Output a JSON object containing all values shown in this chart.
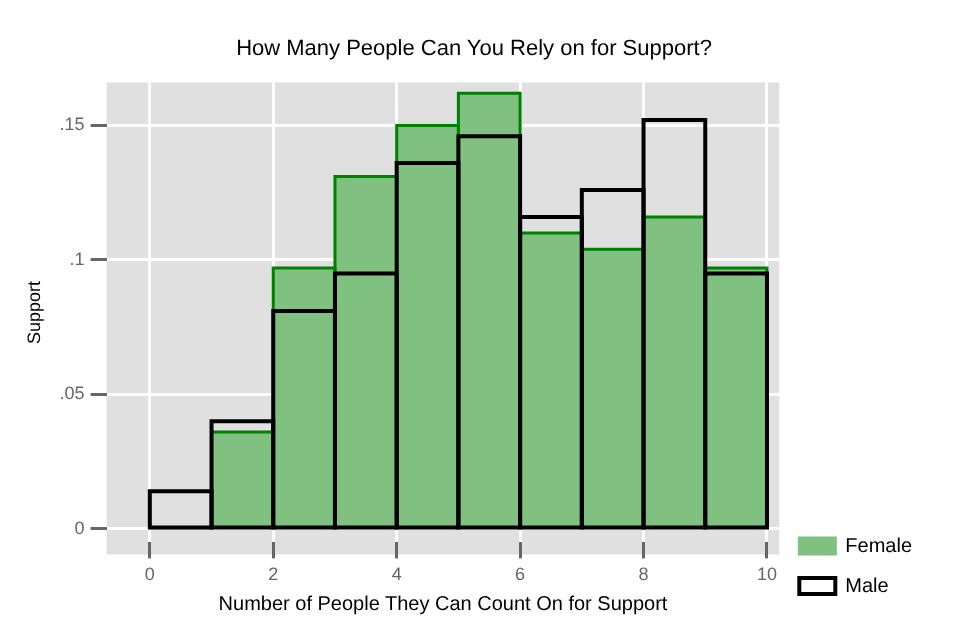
{
  "chart_data": {
    "type": "histogram",
    "title": "How Many People Can You Rely on for Support?",
    "xlabel": "Number of People They Can Count On for Support",
    "ylabel": "Support",
    "bins": [
      0,
      1,
      2,
      3,
      4,
      5,
      6,
      7,
      8,
      9,
      10
    ],
    "series": [
      {
        "name": "Female",
        "color": "#80c080",
        "values": [
          0,
          0.036,
          0.097,
          0.131,
          0.15,
          0.162,
          0.11,
          0.104,
          0.116,
          0.097
        ]
      },
      {
        "name": "Male",
        "color": "#000000",
        "values": [
          0.014,
          0.04,
          0.081,
          0.095,
          0.136,
          0.146,
          0.116,
          0.126,
          0.152,
          0.095
        ]
      }
    ],
    "xlim": [
      -0.7,
      10.2
    ],
    "xticks": [
      0,
      2,
      4,
      6,
      8,
      10
    ],
    "ylim": [
      -0.005,
      0.166
    ],
    "yticks": [
      {
        "value": 0,
        "label": "0"
      },
      {
        "value": 0.05,
        "label": ".05"
      },
      {
        "value": 0.1,
        "label": ".1"
      },
      {
        "value": 0.15,
        "label": ".15"
      }
    ],
    "grid": true,
    "legend": "bottom right"
  }
}
